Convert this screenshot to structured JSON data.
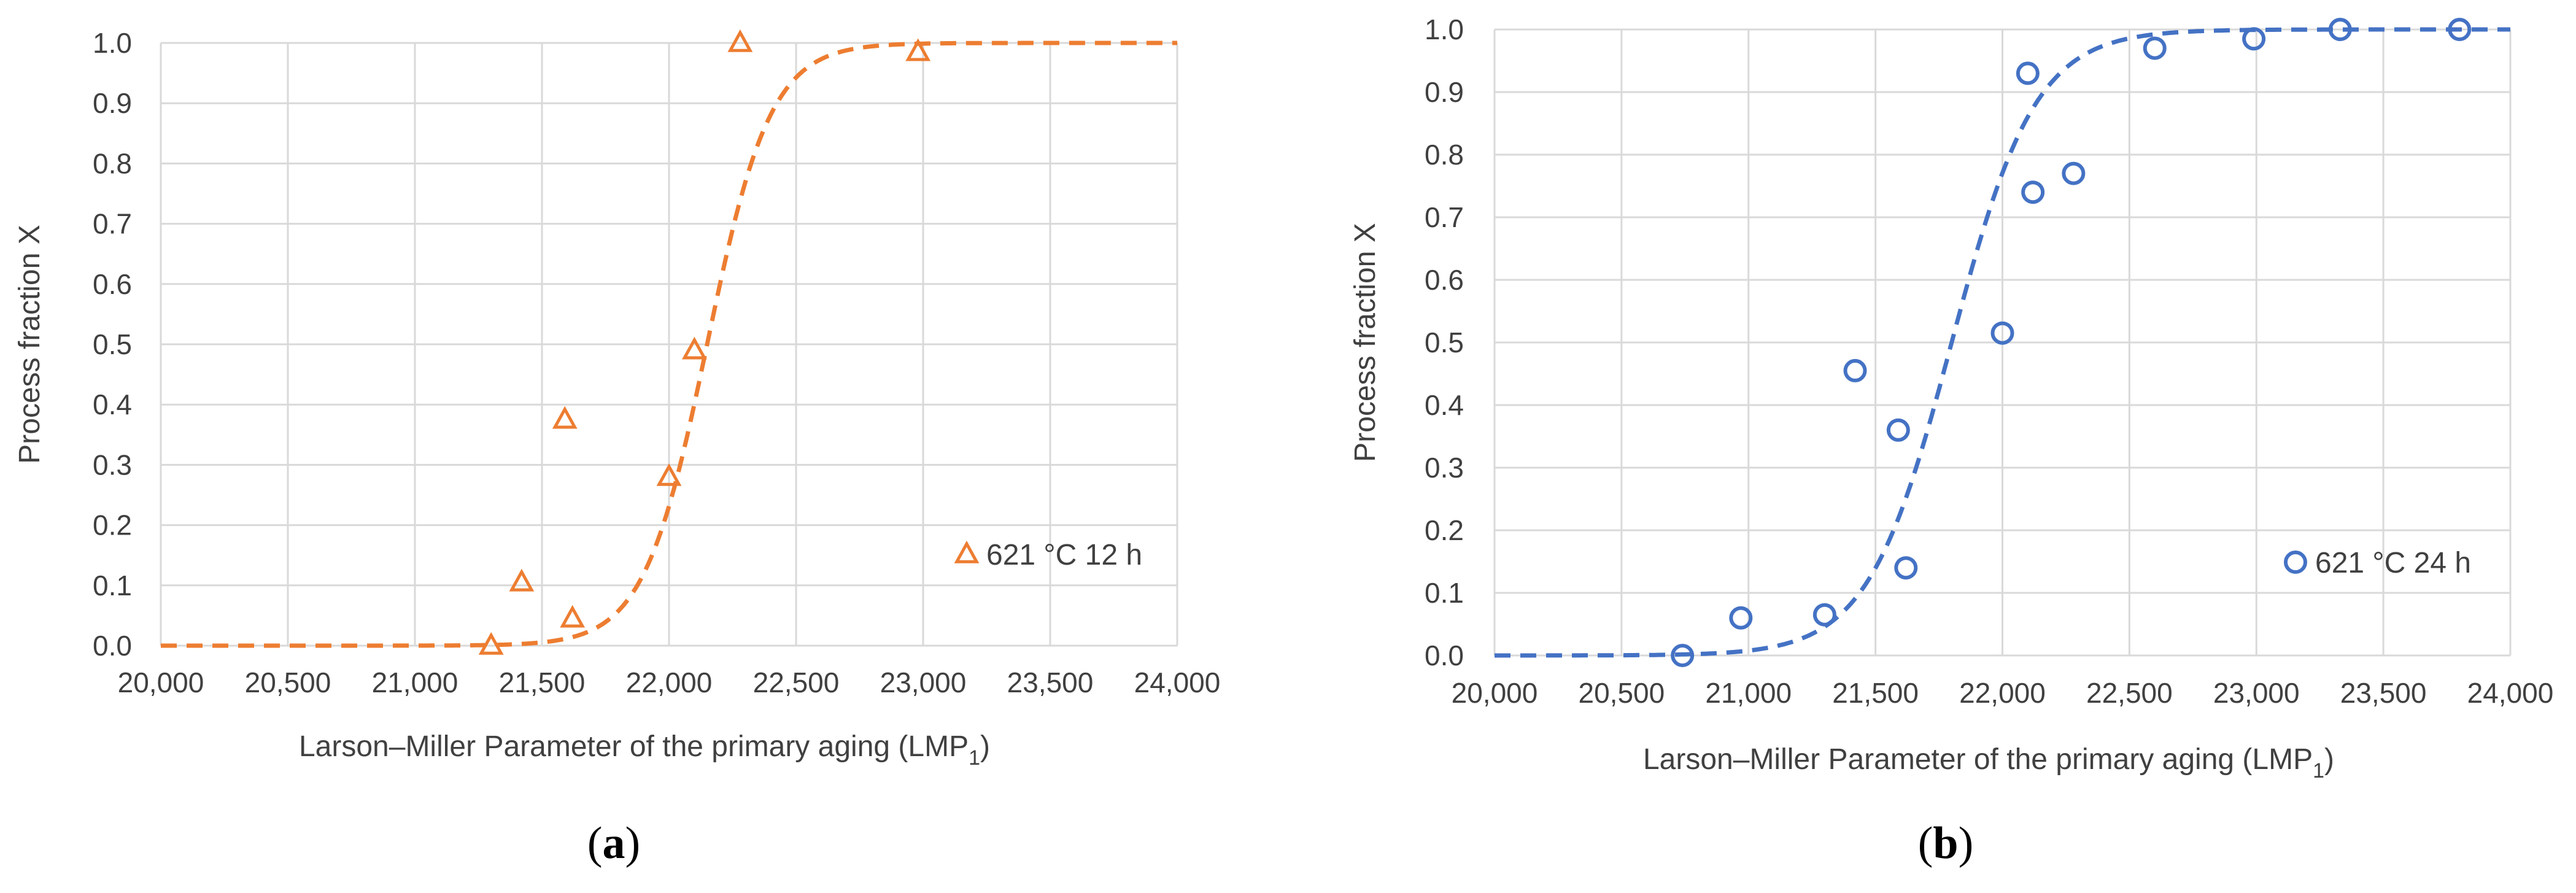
{
  "chart_data": [
    {
      "type": "scatter",
      "panel_label": "a",
      "xlabel": "Larson–Miller Parameter of the primary aging (LMP",
      "xlabel_sub": "1",
      "xlabel_suffix": ")",
      "ylabel": "Process fraction X",
      "xlim": [
        20000,
        24000
      ],
      "ylim": [
        0,
        1.0
      ],
      "xticks": [
        "20,000",
        "20,500",
        "21,000",
        "21,500",
        "22,000",
        "22,500",
        "23,000",
        "23,500",
        "24,000"
      ],
      "yticks": [
        "0.0",
        "0.1",
        "0.2",
        "0.3",
        "0.4",
        "0.5",
        "0.6",
        "0.7",
        "0.8",
        "0.9",
        "1.0"
      ],
      "grid": true,
      "legend_position": "lower-right",
      "color": "#ED7D31",
      "marker": "triangle",
      "series": [
        {
          "name": "621 °C 12 h",
          "points": [
            {
              "x": 21300,
              "y": 0.0
            },
            {
              "x": 21420,
              "y": 0.105
            },
            {
              "x": 21590,
              "y": 0.375
            },
            {
              "x": 21620,
              "y": 0.045
            },
            {
              "x": 22000,
              "y": 0.28
            },
            {
              "x": 22100,
              "y": 0.49
            },
            {
              "x": 22280,
              "y": 1.0
            },
            {
              "x": 22980,
              "y": 0.985
            }
          ]
        }
      ],
      "fit_curve": {
        "style": "dashed",
        "model": "logistic",
        "x0": 22150,
        "scale": 125
      }
    },
    {
      "type": "scatter",
      "panel_label": "b",
      "xlabel": "Larson–Miller Parameter of the primary aging (LMP",
      "xlabel_sub": "1",
      "xlabel_suffix": ")",
      "ylabel": "Process fraction X",
      "xlim": [
        20000,
        24000
      ],
      "ylim": [
        0,
        1.0
      ],
      "xticks": [
        "20,000",
        "20,500",
        "21,000",
        "21,500",
        "22,000",
        "22,500",
        "23,000",
        "23,500",
        "24,000"
      ],
      "yticks": [
        "0.0",
        "0.1",
        "0.2",
        "0.3",
        "0.4",
        "0.5",
        "0.6",
        "0.7",
        "0.8",
        "0.9",
        "1.0"
      ],
      "grid": true,
      "legend_position": "lower-right",
      "color": "#4472C4",
      "marker": "circle",
      "series": [
        {
          "name": "621 °C 24 h",
          "points": [
            {
              "x": 20740,
              "y": 0.0
            },
            {
              "x": 20970,
              "y": 0.06
            },
            {
              "x": 21300,
              "y": 0.065
            },
            {
              "x": 21420,
              "y": 0.455
            },
            {
              "x": 21590,
              "y": 0.36
            },
            {
              "x": 21620,
              "y": 0.14
            },
            {
              "x": 22000,
              "y": 0.515
            },
            {
              "x": 22100,
              "y": 0.93
            },
            {
              "x": 22120,
              "y": 0.74
            },
            {
              "x": 22280,
              "y": 0.77
            },
            {
              "x": 22600,
              "y": 0.97
            },
            {
              "x": 22990,
              "y": 0.985
            },
            {
              "x": 23330,
              "y": 1.0
            },
            {
              "x": 23800,
              "y": 1.0
            }
          ]
        }
      ],
      "fit_curve": {
        "style": "dashed",
        "model": "logistic",
        "x0": 21800,
        "scale": 165
      }
    }
  ]
}
